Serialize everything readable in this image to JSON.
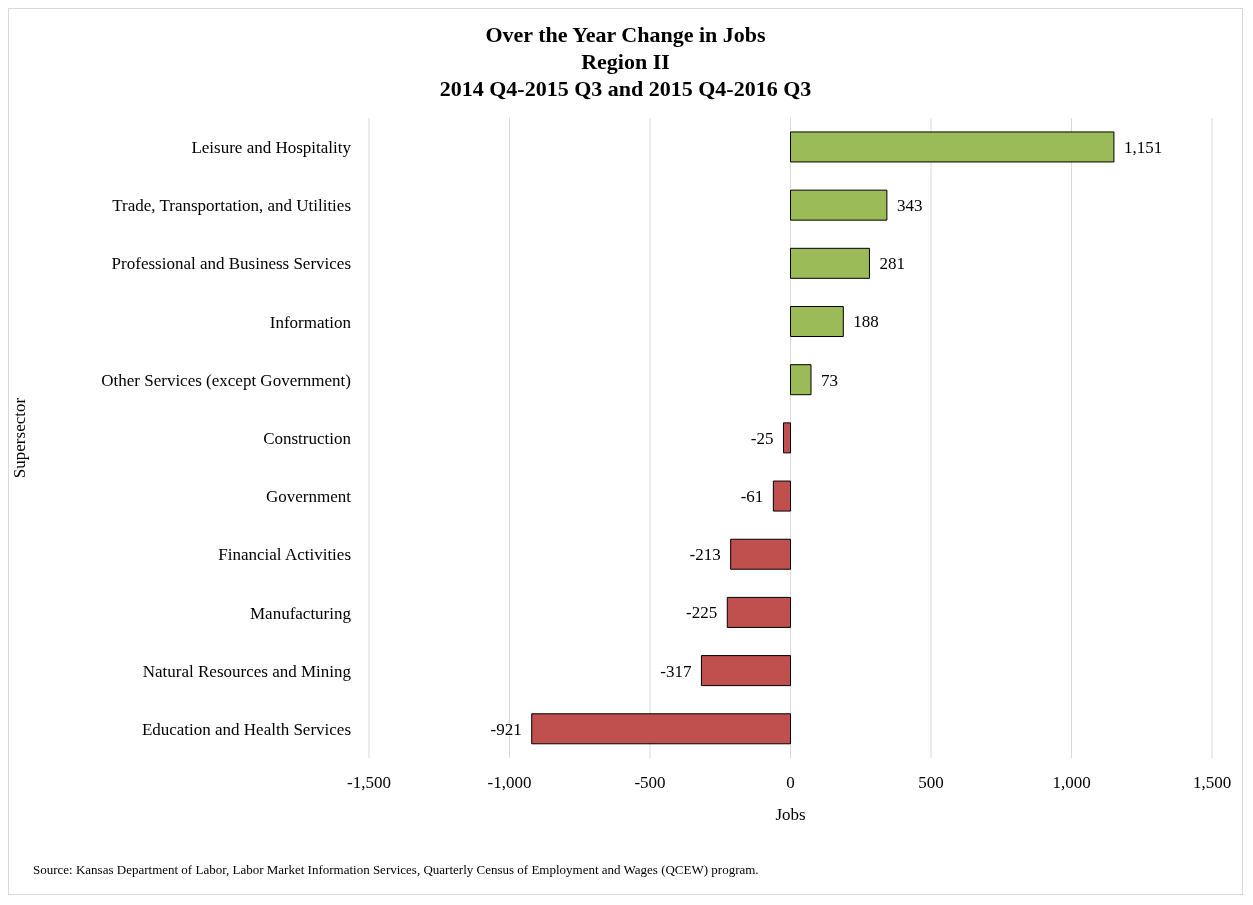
{
  "chart_data": {
    "type": "bar",
    "orientation": "horizontal",
    "title": "Over the Year Change in Jobs",
    "subtitle": "Region II\n2014 Q4-2015 Q3 and 2015 Q4-2016 Q3",
    "xlabel": "Jobs",
    "ylabel": "Supersector",
    "categories": [
      "Leisure and Hospitality",
      "Trade, Transportation, and Utilities",
      "Professional and Business Services",
      "Information",
      "Other Services (except Government)",
      "Construction",
      "Government",
      "Financial Activities",
      "Manufacturing",
      "Natural Resources and Mining",
      "Education and Health Services"
    ],
    "values": [
      1151,
      343,
      281,
      188,
      73,
      -25,
      -61,
      -213,
      -225,
      -317,
      -921
    ],
    "value_labels": [
      "1,151",
      "343",
      "281",
      "188",
      "73",
      "-25",
      "-61",
      "-213",
      "-225",
      "-317",
      "-921"
    ],
    "colors": [
      "#9bbb59",
      "#9bbb59",
      "#9bbb59",
      "#9bbb59",
      "#9bbb59",
      "#c0504d",
      "#c0504d",
      "#c0504d",
      "#c0504d",
      "#c0504d",
      "#c0504d"
    ],
    "xlim": [
      -1500,
      1500
    ],
    "xticks": [
      {
        "value": -1500,
        "label": "-1,500"
      },
      {
        "value": -1000,
        "label": "-1,000"
      },
      -500,
      0,
      500,
      {
        "value": 1000,
        "label": "1,000"
      },
      {
        "value": 1500,
        "label": "1,500"
      }
    ],
    "grid": "x",
    "annotations": [
      "Source: Kansas Department of Labor, Labor Market Information Services, Quarterly Census of Employment and Wages (QCEW) program."
    ]
  }
}
